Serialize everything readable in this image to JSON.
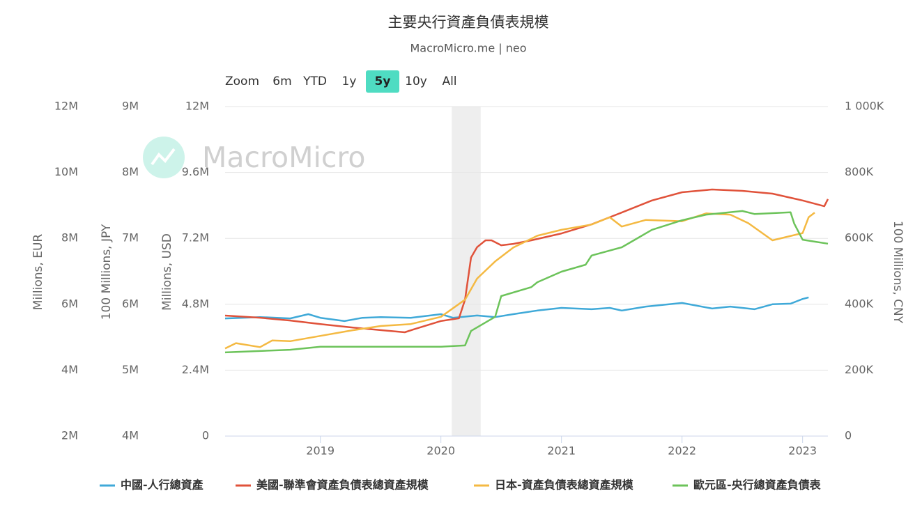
{
  "zoom": {
    "label": "Zoom",
    "buttons": [
      "6m",
      "YTD",
      "1y",
      "5y",
      "10y",
      "All"
    ],
    "selected": "5y"
  },
  "watermark": "MacroMicro",
  "chart_data": {
    "type": "line",
    "title": "主要央行資產負債表規模",
    "subtitle": "MacroMicro.me | neo",
    "xlim": [
      2018.21,
      2023.21
    ],
    "xticks": [
      2019,
      2020,
      2021,
      2022,
      2023
    ],
    "shaded_regions": [
      [
        2020.09,
        2020.33
      ]
    ],
    "shade_color": "#eeeeee",
    "grid": true,
    "legend": "bottom",
    "ylabel": "Millions, USD",
    "ylim": [
      0,
      12000000
    ],
    "yticks": [
      {
        "value": 0,
        "label": "0"
      },
      {
        "value": 2400000,
        "label": "2.4M"
      },
      {
        "value": 4800000,
        "label": "4.8M"
      },
      {
        "value": 7200000,
        "label": "7.2M"
      },
      {
        "value": 9600000,
        "label": "9.6M"
      },
      {
        "value": 12000000,
        "label": "12M"
      }
    ],
    "y2label": "100 Millions, CNY",
    "y2lim": [
      0,
      1000000
    ],
    "y2ticks": [
      {
        "value": 0,
        "label": "0"
      },
      {
        "value": 200000,
        "label": "200K"
      },
      {
        "value": 400000,
        "label": "400K"
      },
      {
        "value": 600000,
        "label": "600K"
      },
      {
        "value": 800000,
        "label": "800K"
      },
      {
        "value": 1000000,
        "label": "1 000K"
      }
    ],
    "y3label": "100 Millions, JPY",
    "y3lim": [
      4000000,
      9000000
    ],
    "y3ticks": [
      {
        "value": 4000000,
        "label": "4M"
      },
      {
        "value": 5000000,
        "label": "5M"
      },
      {
        "value": 6000000,
        "label": "6M"
      },
      {
        "value": 7000000,
        "label": "7M"
      },
      {
        "value": 8000000,
        "label": "8M"
      },
      {
        "value": 9000000,
        "label": "9M"
      }
    ],
    "y4label": "Millions, EUR",
    "y4lim": [
      2000000,
      12000000
    ],
    "y4ticks": [
      {
        "value": 2000000,
        "label": "2M"
      },
      {
        "value": 4000000,
        "label": "4M"
      },
      {
        "value": 6000000,
        "label": "6M"
      },
      {
        "value": 8000000,
        "label": "8M"
      },
      {
        "value": 10000000,
        "label": "10M"
      },
      {
        "value": 12000000,
        "label": "12M"
      }
    ],
    "series": [
      {
        "name": "中國-人行總資產",
        "color": "#3fa9d8",
        "axis": "y2",
        "x": [
          2018.21,
          2018.5,
          2018.75,
          2018.9,
          2019.0,
          2019.2,
          2019.35,
          2019.5,
          2019.75,
          2020.0,
          2020.1,
          2020.3,
          2020.45,
          2020.6,
          2020.8,
          2021.0,
          2021.25,
          2021.4,
          2021.5,
          2021.7,
          2022.0,
          2022.25,
          2022.4,
          2022.6,
          2022.75,
          2022.9,
          2023.0,
          2023.05
        ],
        "values": [
          357000,
          361000,
          357000,
          370000,
          359000,
          349000,
          359000,
          361000,
          359000,
          370000,
          359000,
          366000,
          361000,
          370000,
          381000,
          389000,
          385000,
          389000,
          381000,
          393000,
          404000,
          387000,
          393000,
          385000,
          400000,
          402000,
          416000,
          421000
        ]
      },
      {
        "name": "美國-聯準會資產負債表總資產規模",
        "color": "#e0523a",
        "axis": "y",
        "x": [
          2018.21,
          2018.5,
          2018.75,
          2019.0,
          2019.25,
          2019.5,
          2019.7,
          2019.77,
          2020.0,
          2020.15,
          2020.2,
          2020.25,
          2020.3,
          2020.37,
          2020.42,
          2020.5,
          2020.6,
          2020.75,
          2021.0,
          2021.25,
          2021.5,
          2021.75,
          2022.0,
          2022.25,
          2022.5,
          2022.75,
          2023.0,
          2023.18,
          2023.21
        ],
        "values": [
          4390000,
          4310000,
          4210000,
          4080000,
          3960000,
          3860000,
          3780000,
          3880000,
          4190000,
          4290000,
          4970000,
          6500000,
          6880000,
          7130000,
          7130000,
          6950000,
          7000000,
          7130000,
          7380000,
          7710000,
          8140000,
          8580000,
          8880000,
          8980000,
          8930000,
          8830000,
          8580000,
          8370000,
          8630000
        ]
      },
      {
        "name": "日本-資產負債表總資產規模",
        "color": "#f4b942",
        "axis": "y3",
        "x": [
          2018.21,
          2018.3,
          2018.5,
          2018.6,
          2018.75,
          2019.0,
          2019.25,
          2019.5,
          2019.75,
          2020.0,
          2020.2,
          2020.3,
          2020.45,
          2020.6,
          2020.8,
          2021.0,
          2021.25,
          2021.4,
          2021.5,
          2021.7,
          2022.0,
          2022.2,
          2022.4,
          2022.55,
          2022.75,
          2023.0,
          2023.05,
          2023.1
        ],
        "values": [
          5330000,
          5410000,
          5350000,
          5450000,
          5440000,
          5520000,
          5600000,
          5670000,
          5700000,
          5810000,
          6070000,
          6390000,
          6650000,
          6860000,
          7040000,
          7130000,
          7210000,
          7320000,
          7180000,
          7280000,
          7260000,
          7380000,
          7360000,
          7230000,
          6970000,
          7080000,
          7320000,
          7390000
        ]
      },
      {
        "name": "歐元區-央行總資產負債表",
        "color": "#6cc35a",
        "axis": "y4",
        "x": [
          2018.21,
          2018.75,
          2019.0,
          2019.5,
          2020.0,
          2020.2,
          2020.25,
          2020.45,
          2020.5,
          2020.75,
          2020.8,
          2021.0,
          2021.2,
          2021.25,
          2021.5,
          2021.6,
          2021.75,
          2022.0,
          2022.2,
          2022.5,
          2022.6,
          2022.9,
          2022.93,
          2023.0,
          2023.1,
          2023.21
        ],
        "values": [
          4540000,
          4620000,
          4710000,
          4710000,
          4710000,
          4750000,
          5190000,
          5620000,
          6250000,
          6520000,
          6670000,
          6990000,
          7200000,
          7480000,
          7730000,
          7940000,
          8260000,
          8550000,
          8720000,
          8830000,
          8740000,
          8790000,
          8450000,
          7960000,
          7900000,
          7840000
        ]
      }
    ]
  }
}
